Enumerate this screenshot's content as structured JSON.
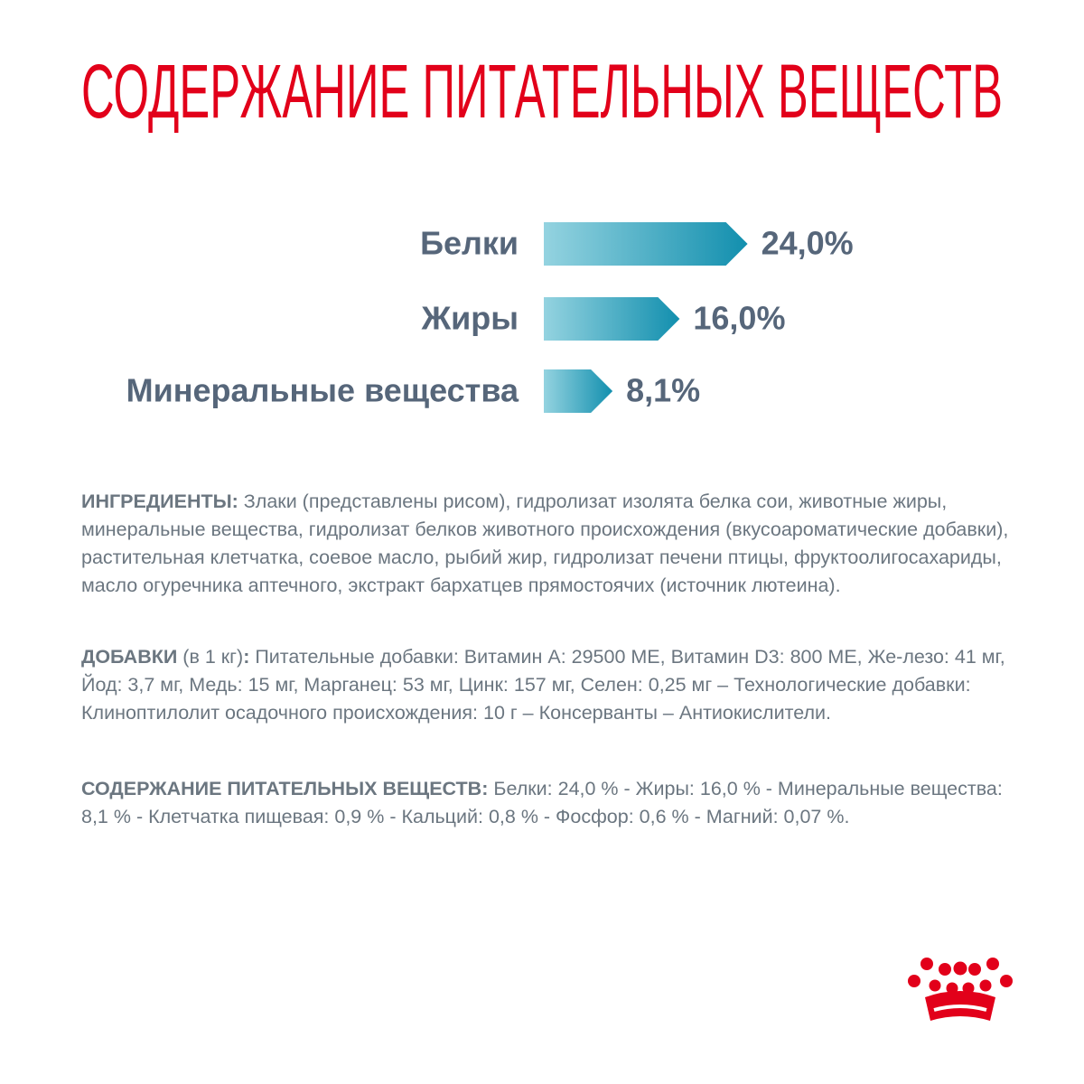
{
  "chart_data": {
    "type": "bar",
    "orientation": "horizontal",
    "title": "СОДЕРЖАНИЕ ПИТАТЕЛЬНЫХ ВЕЩЕСТВ",
    "categories": [
      "Белки",
      "Жиры",
      "Минеральные вещества"
    ],
    "values": [
      24.0,
      16.0,
      8.1
    ],
    "value_labels": [
      "24,0%",
      "16,0%",
      "8,1%"
    ],
    "color": [
      "#94d3e0",
      "#128fae"
    ]
  },
  "paragraphs": [
    [
      {
        "text": "ИНГРЕДИЕНТЫ:",
        "bold": true
      },
      {
        "text": " Злаки (представлены рисом), гидролизат изолята белка сои, животные жиры, минеральные вещества, гидролизат белков животного происхождения (вкусоароматические добавки), растительная клетчатка, соевое масло, рыбий жир, гидролизат печени птицы, фруктоолигосахариды, масло огуречника аптечного, экстракт бархатцев прямостоячих (источник лютеина).",
        "bold": false
      }
    ],
    [
      {
        "text": "ДОБАВКИ",
        "bold": true
      },
      {
        "text": " (в 1 кг)",
        "bold": false
      },
      {
        "text": ":",
        "bold": true
      },
      {
        "text": " Питательные добавки: Витамин А: 29500 МЕ, Витамин D3: 800 МЕ, Же-лезо: 41 мг, Йод: 3,7 мг, Медь: 15 мг, Марганец: 53 мг, Цинк: 157 мг, Селен: 0,25 мг – Технологические добавки: Клиноптилолит осадочного происхождения: 10 г – Консерванты – Антиокислители.",
        "bold": false
      }
    ],
    [
      {
        "text": "СОДЕРЖАНИЕ ПИТАТЕЛЬНЫХ ВЕЩЕСТВ:",
        "bold": true
      },
      {
        "text": " Белки: 24,0 % - Жиры: 16,0 % - Минеральные вещества: 8,1 % - Клетчатка пищевая: 0,9 % - Кальций: 0,8 % - Фосфор: 0,6 % - Магний: 0,07 %.",
        "bold": false
      }
    ]
  ]
}
